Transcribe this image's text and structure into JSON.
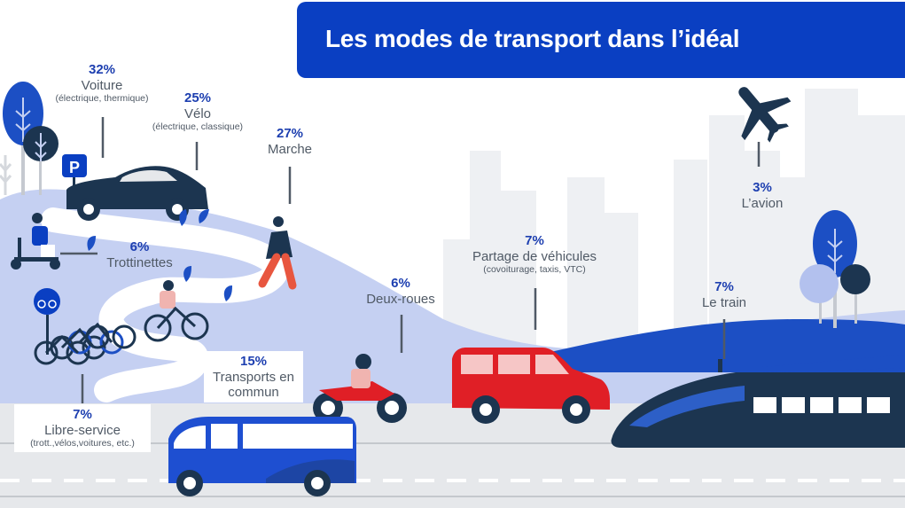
{
  "title": "Les modes de transport dans l’idéal",
  "colors": {
    "banner": "#0a3fc2",
    "percent": "#1d3fb0",
    "label": "#505a66",
    "landscape": "#c5d0f2",
    "car_dark": "#1c3550",
    "bus": "#1e4fd1",
    "shared_car": "#e01f26",
    "train": "#1c3550"
  },
  "icons": [
    "parking-icon",
    "bike-lane-sign-icon",
    "airplane-icon",
    "tree-icon",
    "city-skyline"
  ],
  "chart_data": {
    "type": "infographic",
    "title": "Les modes de transport dans l’idéal",
    "categories": [
      "Voiture",
      "Vélo",
      "Marche",
      "Trottinettes",
      "Deux-roues",
      "Transports en commun",
      "Libre-service",
      "Partage de véhicules",
      "Le train",
      "L’avion"
    ],
    "values": [
      32,
      25,
      27,
      6,
      6,
      15,
      7,
      7,
      7,
      3
    ],
    "unit": "%"
  },
  "modes": {
    "voiture": {
      "pct": "32%",
      "name": "Voiture",
      "sub": "(électrique, thermique)"
    },
    "velo": {
      "pct": "25%",
      "name": "Vélo",
      "sub": "(électrique, classique)"
    },
    "marche": {
      "pct": "27%",
      "name": "Marche"
    },
    "trottinettes": {
      "pct": "6%",
      "name": "Trottinettes"
    },
    "deux_roues": {
      "pct": "6%",
      "name": "Deux-roues"
    },
    "transports": {
      "pct": "15%",
      "name_line1": "Transports en",
      "name_line2": "commun"
    },
    "libre_service": {
      "pct": "7%",
      "name": "Libre-service",
      "sub": "(trott.,vélos,voitures, etc.)"
    },
    "partage": {
      "pct": "7%",
      "name": "Partage de véhicules",
      "sub": "(covoiturage, taxis, VTC)"
    },
    "train": {
      "pct": "7%",
      "name": "Le train"
    },
    "avion": {
      "pct": "3%",
      "name": "L’avion"
    }
  },
  "signs": {
    "parking": "P"
  }
}
